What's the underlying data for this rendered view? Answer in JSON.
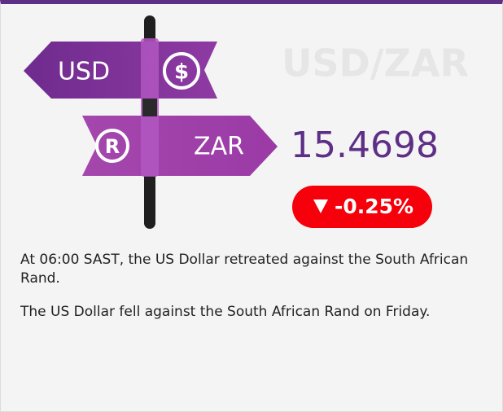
{
  "header": {
    "pair": "USD/ZAR"
  },
  "signpost": {
    "top_label": "USD",
    "top_symbol": "$",
    "bottom_symbol": "R",
    "bottom_label": "ZAR"
  },
  "rate": "15.4698",
  "change": "-0.25%",
  "paragraphs": [
    "At 06:00 SAST, the US Dollar retreated against the South African Rand.",
    "The US Dollar fell against the South African Rand on Friday."
  ]
}
